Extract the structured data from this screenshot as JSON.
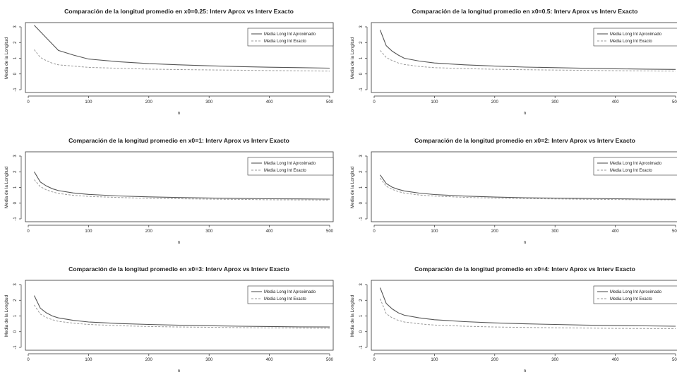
{
  "figure": {
    "xlabel": "n",
    "ylabel": "Media de la Longitud",
    "legend": [
      "Media Long Int Aproximado",
      "Media Long Int Exacto"
    ],
    "legend_position": "top-right",
    "colors": {
      "approx": "#555555",
      "exact": "#9a9a9a"
    }
  },
  "chart_data": [
    {
      "type": "line",
      "title": "Comparación de la longitud promedio en x0=0.25: Interv Aprox vs Interv Exacto",
      "xlabel": "n",
      "ylabel": "Media de la Longitud",
      "xlim": [
        0,
        500
      ],
      "ylim": [
        -1,
        3
      ],
      "xticks": [
        "0",
        "100",
        "200",
        "300",
        "400",
        "500"
      ],
      "yticks": [
        "-1",
        "0",
        "1",
        "2",
        "3"
      ],
      "x": [
        10,
        20,
        30,
        40,
        50,
        75,
        100,
        150,
        200,
        250,
        300,
        350,
        400,
        450,
        500
      ],
      "series": [
        {
          "name": "Media Long Int Aproximado",
          "values": [
            3.1,
            2.7,
            2.3,
            1.9,
            1.5,
            1.2,
            0.95,
            0.78,
            0.66,
            0.58,
            0.52,
            0.47,
            0.43,
            0.4,
            0.37
          ]
        },
        {
          "name": "Media Long Int Exacto",
          "values": [
            1.55,
            1.05,
            0.85,
            0.68,
            0.58,
            0.5,
            0.42,
            0.36,
            0.31,
            0.28,
            0.26,
            0.24,
            0.22,
            0.2,
            0.18
          ]
        }
      ]
    },
    {
      "type": "line",
      "title": "Comparación de la longitud promedio en x0=0.5: Interv Aprox vs Interv Exacto",
      "xlabel": "n",
      "ylabel": "Media de la Longitud",
      "xlim": [
        0,
        500
      ],
      "ylim": [
        -1,
        3
      ],
      "xticks": [
        "0",
        "100",
        "200",
        "300",
        "400",
        "500"
      ],
      "yticks": [
        "-1",
        "0",
        "1",
        "2",
        "3"
      ],
      "x": [
        10,
        20,
        30,
        40,
        50,
        75,
        100,
        150,
        200,
        250,
        300,
        350,
        400,
        450,
        500
      ],
      "series": [
        {
          "name": "Media Long Int Aproximado",
          "values": [
            2.8,
            1.8,
            1.45,
            1.2,
            1.0,
            0.82,
            0.7,
            0.58,
            0.5,
            0.44,
            0.4,
            0.36,
            0.33,
            0.31,
            0.29
          ]
        },
        {
          "name": "Media Long Int Exacto",
          "values": [
            1.5,
            1.05,
            0.85,
            0.7,
            0.6,
            0.48,
            0.4,
            0.34,
            0.3,
            0.27,
            0.25,
            0.23,
            0.21,
            0.19,
            0.18
          ]
        }
      ]
    },
    {
      "type": "line",
      "title": "Comparación de la longitud promedio en x0=1: Interv Aprox vs Interv Exacto",
      "xlabel": "n",
      "ylabel": "Media de la Longitud",
      "xlim": [
        0,
        500
      ],
      "ylim": [
        -1,
        3
      ],
      "xticks": [
        "0",
        "100",
        "200",
        "300",
        "400",
        "500"
      ],
      "yticks": [
        "-1",
        "0",
        "1",
        "2",
        "3"
      ],
      "x": [
        10,
        20,
        30,
        40,
        50,
        75,
        100,
        150,
        200,
        250,
        300,
        350,
        400,
        450,
        500
      ],
      "series": [
        {
          "name": "Media Long Int Aproximado",
          "values": [
            2.0,
            1.35,
            1.1,
            0.92,
            0.8,
            0.65,
            0.56,
            0.46,
            0.4,
            0.36,
            0.33,
            0.3,
            0.28,
            0.27,
            0.26
          ]
        },
        {
          "name": "Media Long Int Exacto",
          "values": [
            1.5,
            1.05,
            0.85,
            0.72,
            0.62,
            0.5,
            0.43,
            0.36,
            0.31,
            0.28,
            0.26,
            0.24,
            0.22,
            0.21,
            0.2
          ]
        }
      ]
    },
    {
      "type": "line",
      "title": "Comparación de la longitud promedio en x0=2: Interv Aprox vs Interv Exacto",
      "xlabel": "n",
      "ylabel": "Media de la Longitud",
      "xlim": [
        0,
        500
      ],
      "ylim": [
        -1,
        3
      ],
      "xticks": [
        "0",
        "100",
        "200",
        "300",
        "400",
        "500"
      ],
      "yticks": [
        "-1",
        "0",
        "1",
        "2",
        "3"
      ],
      "x": [
        10,
        20,
        30,
        40,
        50,
        75,
        100,
        150,
        200,
        250,
        300,
        350,
        400,
        450,
        500
      ],
      "series": [
        {
          "name": "Media Long Int Aproximado",
          "values": [
            1.8,
            1.25,
            1.02,
            0.88,
            0.78,
            0.64,
            0.55,
            0.45,
            0.39,
            0.35,
            0.32,
            0.3,
            0.28,
            0.26,
            0.25
          ]
        },
        {
          "name": "Media Long Int Exacto",
          "values": [
            1.6,
            1.08,
            0.88,
            0.74,
            0.64,
            0.52,
            0.45,
            0.37,
            0.32,
            0.29,
            0.27,
            0.25,
            0.23,
            0.22,
            0.21
          ]
        }
      ]
    },
    {
      "type": "line",
      "title": "Comparación de la longitud promedio en x0=3: Interv Aprox vs Interv Exacto",
      "xlabel": "n",
      "ylabel": "Media de la Longitud",
      "xlim": [
        0,
        500
      ],
      "ylim": [
        -1,
        3
      ],
      "xticks": [
        "0",
        "100",
        "200",
        "300",
        "400",
        "500"
      ],
      "yticks": [
        "-1",
        "0",
        "1",
        "2",
        "3"
      ],
      "x": [
        10,
        20,
        30,
        40,
        50,
        75,
        100,
        150,
        200,
        250,
        300,
        350,
        400,
        450,
        500
      ],
      "series": [
        {
          "name": "Media Long Int Aproximado",
          "values": [
            2.3,
            1.5,
            1.2,
            1.0,
            0.88,
            0.72,
            0.62,
            0.52,
            0.46,
            0.41,
            0.38,
            0.35,
            0.33,
            0.31,
            0.3
          ]
        },
        {
          "name": "Media Long Int Exacto",
          "values": [
            1.7,
            1.12,
            0.9,
            0.76,
            0.66,
            0.54,
            0.46,
            0.38,
            0.33,
            0.3,
            0.28,
            0.26,
            0.24,
            0.23,
            0.22
          ]
        }
      ]
    },
    {
      "type": "line",
      "title": "Comparación de la longitud promedio en x0=4: Interv Aprox vs Interv Exacto",
      "xlabel": "n",
      "ylabel": "Media de la Longitud",
      "xlim": [
        0,
        500
      ],
      "ylim": [
        -1,
        3
      ],
      "xticks": [
        "0",
        "100",
        "200",
        "300",
        "400",
        "500"
      ],
      "yticks": [
        "-1",
        "0",
        "1",
        "2",
        "3"
      ],
      "x": [
        10,
        20,
        30,
        40,
        50,
        75,
        100,
        150,
        200,
        250,
        300,
        350,
        400,
        450,
        500
      ],
      "series": [
        {
          "name": "Media Long Int Aproximado",
          "values": [
            2.8,
            1.8,
            1.45,
            1.2,
            1.05,
            0.88,
            0.76,
            0.64,
            0.56,
            0.5,
            0.46,
            0.42,
            0.39,
            0.37,
            0.35
          ]
        },
        {
          "name": "Media Long Int Exacto",
          "values": [
            2.1,
            1.15,
            0.88,
            0.72,
            0.62,
            0.5,
            0.42,
            0.35,
            0.3,
            0.27,
            0.25,
            0.23,
            0.21,
            0.2,
            0.19
          ]
        }
      ]
    }
  ]
}
